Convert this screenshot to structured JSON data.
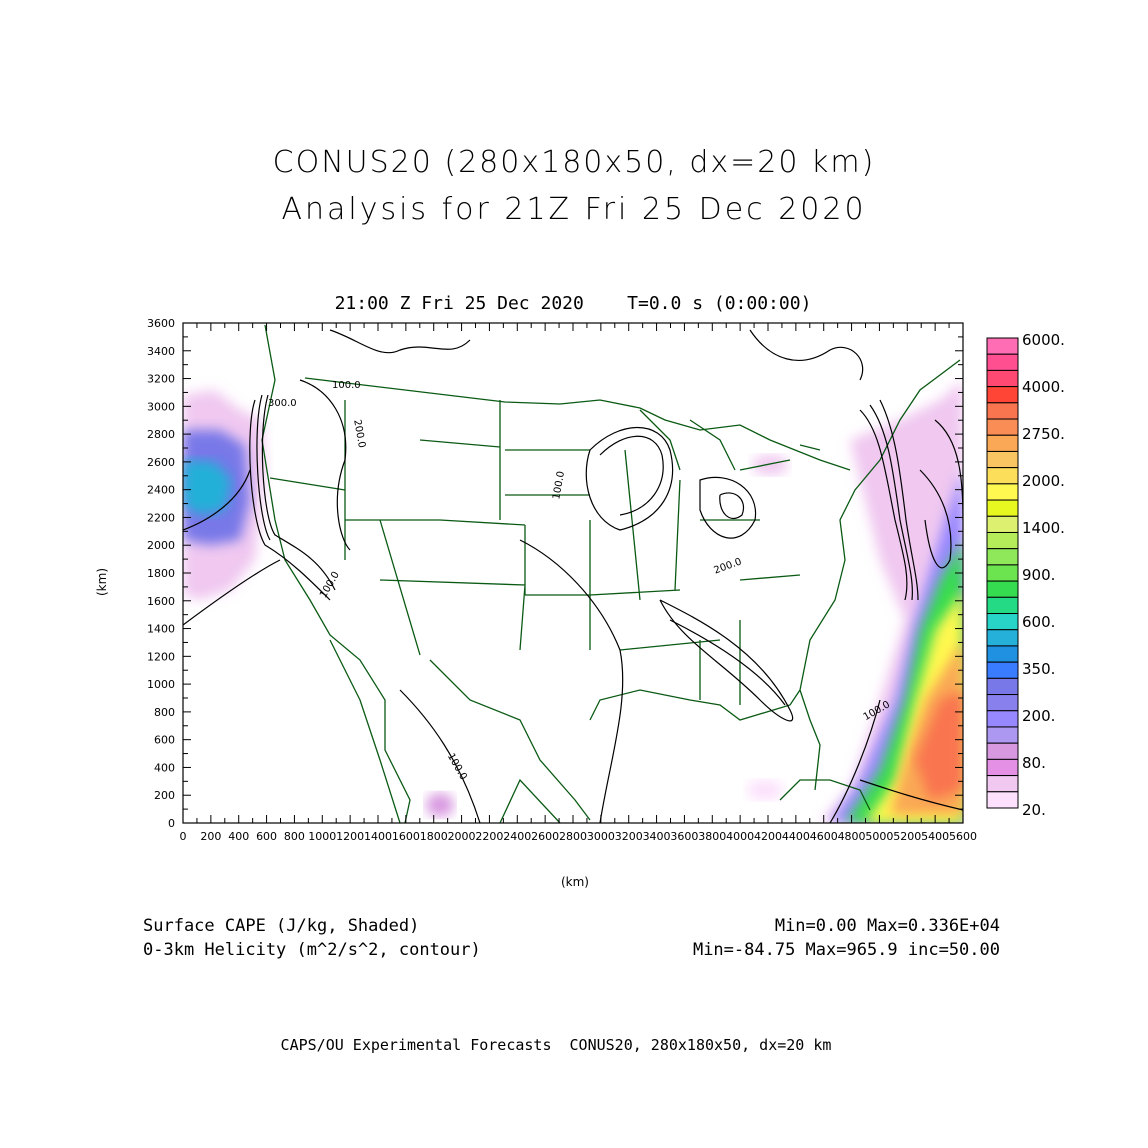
{
  "title": {
    "line1": "CONUS20 (280x180x50, dx=20 km)",
    "line2": "Analysis for 21Z Fri 25 Dec 2020"
  },
  "subtitle": "21:00 Z Fri 25 Dec 2020    T=0.0 s (0:00:00)",
  "chart_data": {
    "type": "heatmap",
    "title": "21:00 Z Fri 25 Dec 2020    T=0.0 s (0:00:00)",
    "xlabel": "(km)",
    "ylabel": "(km)",
    "xlim": [
      0,
      5600
    ],
    "ylim": [
      0,
      3600
    ],
    "xticks": [
      0,
      200,
      400,
      600,
      800,
      1000,
      1200,
      1400,
      1600,
      1800,
      2000,
      2200,
      2400,
      2600,
      2800,
      3000,
      3200,
      3400,
      3600,
      3800,
      4000,
      4200,
      4400,
      4600,
      4800,
      5000,
      5200,
      5400,
      5600
    ],
    "yticks": [
      0,
      200,
      400,
      600,
      800,
      1000,
      1200,
      1400,
      1600,
      1800,
      2000,
      2200,
      2400,
      2600,
      2800,
      3000,
      3200,
      3400,
      3600
    ],
    "contour_labels": [
      "100.0",
      "200.0",
      "300.0"
    ],
    "colorbar": {
      "labels": [
        "6000.",
        "4000.",
        "2750.",
        "2000.",
        "1400.",
        "900.",
        "600.",
        "350.",
        "200.",
        "80.",
        "20."
      ],
      "colors": [
        "#ff6eb4",
        "#ff4f90",
        "#ff4872",
        "#ff4535",
        "#f97550",
        "#fa8c55",
        "#faa855",
        "#f9c462",
        "#fcde5a",
        "#fff850",
        "#e6f820",
        "#ddf070",
        "#b4ec5a",
        "#8ee85a",
        "#6ce450",
        "#35dc50",
        "#25da85",
        "#28d4c8",
        "#24b0d8",
        "#2090e0",
        "#3a7cff",
        "#7878e8",
        "#8880ec",
        "#9888ff",
        "#ac98f0",
        "#d898e0",
        "#e490e4",
        "#f0c8f0",
        "#fce0fc"
      ]
    }
  },
  "footer": {
    "field1": "Surface CAPE (J/kg, Shaded)",
    "field1_stats": "Min=0.00 Max=0.336E+04",
    "field2": "0-3km Helicity (m^2/s^2, contour)",
    "field2_stats": "Min=-84.75 Max=965.9 inc=50.00",
    "credit": "CAPS/OU Experimental Forecasts  CONUS20, 280x180x50, dx=20 km"
  }
}
